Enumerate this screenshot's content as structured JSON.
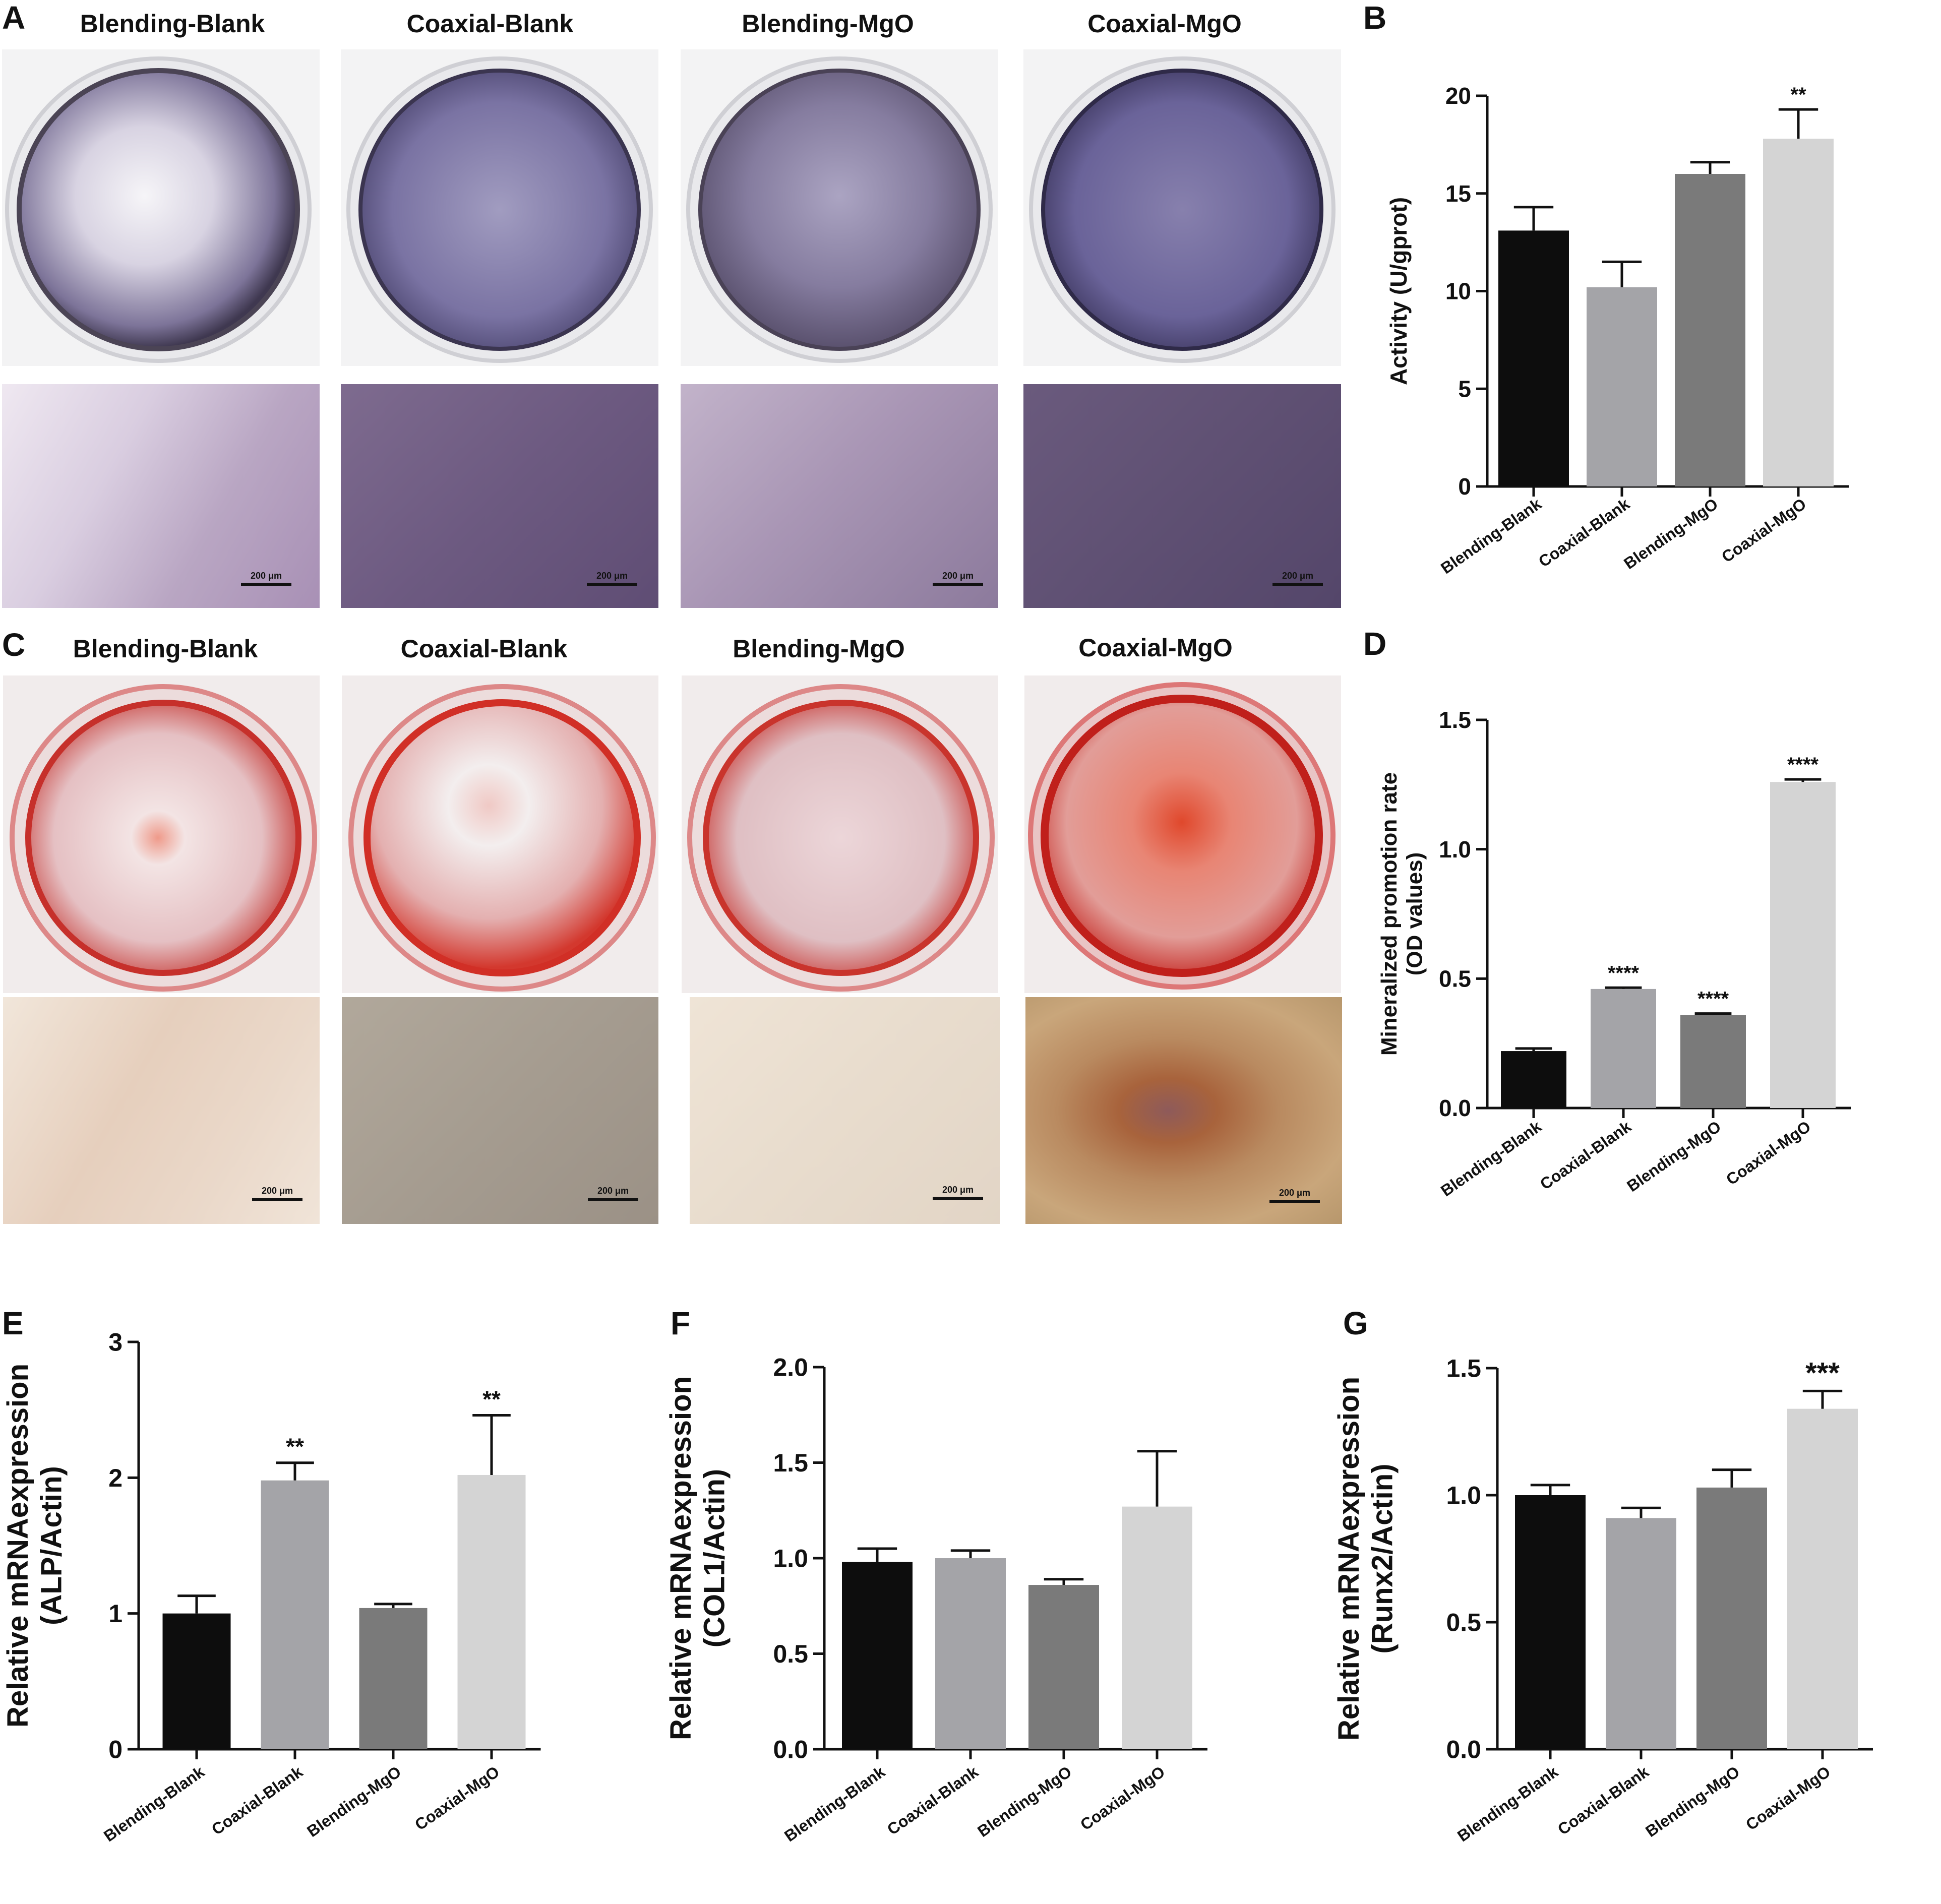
{
  "figure": {
    "groups": [
      "Blending-Blank",
      "Coaxial-Blank",
      "Blending-MgO",
      "Coaxial-MgO"
    ],
    "panel_letters": [
      "A",
      "B",
      "C",
      "D",
      "E",
      "F",
      "G"
    ],
    "scale_bar_label": "200 μm",
    "colors": {
      "alp_stain": "#5e5485",
      "ars_stain": "#d2302a",
      "bar_black": "#0d0d0d",
      "bar_gray1": "#a4a4a8",
      "bar_gray2": "#7a7a7a",
      "bar_gray3": "#d4d4d4"
    }
  },
  "chart_data": [
    {
      "id": "B",
      "type": "bar",
      "categories": [
        "Blending-Blank",
        "Coaxial-Blank",
        "Blending-MgO",
        "Coaxial-MgO"
      ],
      "values": [
        13.1,
        10.2,
        16.0,
        17.8
      ],
      "errors": [
        1.2,
        1.3,
        0.6,
        1.5
      ],
      "significance": [
        "",
        "",
        "",
        "**"
      ],
      "ylabel": "Activity (U/gprot)",
      "ylim": [
        0,
        20
      ],
      "yticks": [
        0,
        5,
        10,
        15,
        20
      ],
      "ytick_labels": [
        "0",
        "5",
        "10",
        "15",
        "20"
      ]
    },
    {
      "id": "D",
      "type": "bar",
      "categories": [
        "Blending-Blank",
        "Coaxial-Blank",
        "Blending-MgO",
        "Coaxial-MgO"
      ],
      "values": [
        0.22,
        0.46,
        0.36,
        1.26
      ],
      "errors": [
        0.01,
        0.005,
        0.005,
        0.01
      ],
      "significance": [
        "",
        "****",
        "****",
        "****"
      ],
      "ylabel_lines": [
        "Mineralized promotion rate",
        "(OD values)"
      ],
      "ylim": [
        0,
        1.5
      ],
      "yticks": [
        0,
        0.5,
        1.0,
        1.5
      ],
      "ytick_labels": [
        "0.0",
        "0.5",
        "1.0",
        "1.5"
      ]
    },
    {
      "id": "E",
      "type": "bar",
      "categories": [
        "Blending-Blank",
        "Coaxial-Blank",
        "Blending-MgO",
        "Coaxial-MgO"
      ],
      "values": [
        1.0,
        1.98,
        1.04,
        2.02
      ],
      "errors": [
        0.13,
        0.13,
        0.03,
        0.44
      ],
      "significance": [
        "",
        "**",
        "",
        "**"
      ],
      "ylabel_lines": [
        "Relative mRNAexpression",
        "(ALP/Actin)"
      ],
      "ylim": [
        0,
        3
      ],
      "yticks": [
        0,
        1,
        2,
        3
      ],
      "ytick_labels": [
        "0",
        "1",
        "2",
        "3"
      ]
    },
    {
      "id": "F",
      "type": "bar",
      "categories": [
        "Blending-Blank",
        "Coaxial-Blank",
        "Blending-MgO",
        "Coaxial-MgO"
      ],
      "values": [
        0.98,
        1.0,
        0.86,
        1.27
      ],
      "errors": [
        0.07,
        0.04,
        0.03,
        0.29
      ],
      "significance": [
        "",
        "",
        "",
        ""
      ],
      "ylabel_lines": [
        "Relative mRNAexpression",
        "(COL1/Actin)"
      ],
      "ylim": [
        0,
        2.0
      ],
      "yticks": [
        0,
        0.5,
        1.0,
        1.5,
        2.0
      ],
      "ytick_labels": [
        "0.0",
        "0.5",
        "1.0",
        "1.5",
        "2.0"
      ]
    },
    {
      "id": "G",
      "type": "bar",
      "categories": [
        "Blending-Blank",
        "Coaxial-Blank",
        "Blending-MgO",
        "Coaxial-MgO"
      ],
      "values": [
        1.0,
        0.91,
        1.03,
        1.34
      ],
      "errors": [
        0.04,
        0.04,
        0.07,
        0.07
      ],
      "significance": [
        "",
        "",
        "",
        "***"
      ],
      "ylabel_lines": [
        "Relative mRNAexpression",
        "(Runx2/Actin)"
      ],
      "ylim": [
        0,
        1.5
      ],
      "yticks": [
        0,
        0.5,
        1.0,
        1.5
      ],
      "ytick_labels": [
        "0.0",
        "0.5",
        "1.0",
        "1.5"
      ]
    }
  ]
}
